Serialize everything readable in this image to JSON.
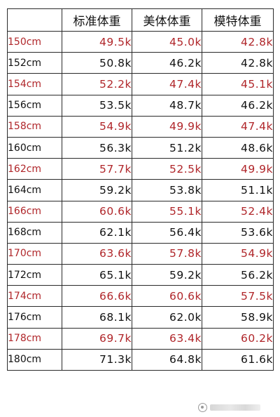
{
  "header": {
    "col0": "",
    "col1": "标准体重",
    "col2": "美体体重",
    "col3": "模特体重"
  },
  "rows": [
    {
      "height": "150cm",
      "standard": "49.5k",
      "beauty": "45.0k",
      "model": "42.8k",
      "color": "red"
    },
    {
      "height": "152cm",
      "standard": "50.8k",
      "beauty": "46.2k",
      "model": "42.8k",
      "color": "black"
    },
    {
      "height": "154cm",
      "standard": "52.2k",
      "beauty": "47.4k",
      "model": "45.1k",
      "color": "red"
    },
    {
      "height": "156cm",
      "standard": "53.5k",
      "beauty": "48.7k",
      "model": "46.2k",
      "color": "black"
    },
    {
      "height": "158cm",
      "standard": "54.9k",
      "beauty": "49.9k",
      "model": "47.4k",
      "color": "red"
    },
    {
      "height": "160cm",
      "standard": "56.3k",
      "beauty": "51.2k",
      "model": "48.6k",
      "color": "black"
    },
    {
      "height": "162cm",
      "standard": "57.7k",
      "beauty": "52.5k",
      "model": "49.9k",
      "color": "red"
    },
    {
      "height": "164cm",
      "standard": "59.2k",
      "beauty": "53.8k",
      "model": "51.1k",
      "color": "black"
    },
    {
      "height": "166cm",
      "standard": "60.6k",
      "beauty": "55.1k",
      "model": "52.4k",
      "color": "red"
    },
    {
      "height": "168cm",
      "standard": "62.1k",
      "beauty": "56.4k",
      "model": "53.6k",
      "color": "black"
    },
    {
      "height": "170cm",
      "standard": "63.6k",
      "beauty": "57.8k",
      "model": "54.9k",
      "color": "red"
    },
    {
      "height": "172cm",
      "standard": "65.1k",
      "beauty": "59.2k",
      "model": "56.2k",
      "color": "black"
    },
    {
      "height": "174cm",
      "standard": "66.6k",
      "beauty": "60.6k",
      "model": "57.5k",
      "color": "red"
    },
    {
      "height": "176cm",
      "standard": "68.1k",
      "beauty": "62.0k",
      "model": "58.9k",
      "color": "black"
    },
    {
      "height": "178cm",
      "standard": "69.7k",
      "beauty": "63.4k",
      "model": "60.2k",
      "color": "red"
    },
    {
      "height": "180cm",
      "standard": "71.3k",
      "beauty": "64.8k",
      "model": "61.6k",
      "color": "black"
    }
  ],
  "colors": {
    "red": "#b0262a",
    "black": "#111111",
    "border": "#2a2a2a"
  },
  "watermark": {
    "icon": "wechat-icon"
  }
}
